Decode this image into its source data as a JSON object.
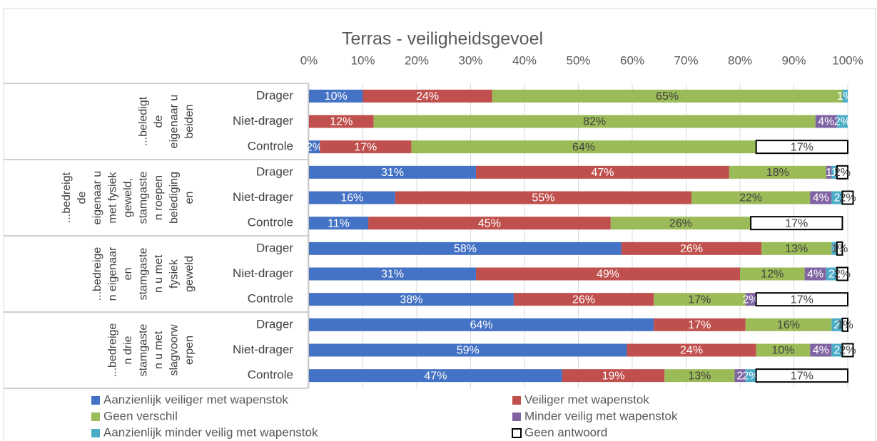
{
  "chart_data": {
    "type": "stacked_barh",
    "title": "Terras - veiligheidsgevoel",
    "categories": [
      "Drager",
      "Niet-drager",
      "Controle",
      "Drager",
      "Niet-drager",
      "Controle",
      "Drager",
      "Niet-drager",
      "Controle",
      "Drager",
      "Niet-drager",
      "Controle"
    ],
    "groups": [
      {
        "lines": [
          "...beledigt",
          "de",
          "eigenaar u",
          "beiden"
        ]
      },
      {
        "lines": [
          "...bedreigt",
          "de",
          "eigenaar u",
          "met fysiek",
          "geweld,",
          "stamgaste",
          "n roepen",
          "belediging",
          "en"
        ]
      },
      {
        "lines": [
          "...bedreige",
          "n eigenaar",
          "en",
          "stamgaste",
          "n u met",
          "fysiek",
          "geweld"
        ]
      },
      {
        "lines": [
          "...bedreige",
          "n drie",
          "stamgaste",
          "n u met",
          "slagvoorw",
          "erpen"
        ]
      }
    ],
    "xlim": [
      0,
      100
    ],
    "xticks": [
      {
        "value": 0,
        "label": "0%"
      },
      {
        "value": 10,
        "label": "10%"
      },
      {
        "value": 20,
        "label": "20%"
      },
      {
        "value": 30,
        "label": "30%"
      },
      {
        "value": 40,
        "label": "40%"
      },
      {
        "value": 50,
        "label": "50%"
      },
      {
        "value": 60,
        "label": "60%"
      },
      {
        "value": 70,
        "label": "70%"
      },
      {
        "value": 80,
        "label": "80%"
      },
      {
        "value": 90,
        "label": "90%"
      },
      {
        "value": 100,
        "label": "100%"
      }
    ],
    "grid": true,
    "legend": "bottom",
    "series": [
      {
        "name": "Aanzienlijk veiliger met wapenstok",
        "color": "#4472c4",
        "values": [
          10,
          0,
          2,
          31,
          16,
          11,
          58,
          31,
          38,
          64,
          59,
          47
        ],
        "value_labels": [
          "10%",
          null,
          "2%",
          "31%",
          "16%",
          "11%",
          "58%",
          "31%",
          "38%",
          "64%",
          "59%",
          "47%"
        ]
      },
      {
        "name": "Veiliger met wapenstok",
        "color": "#c0504d",
        "values": [
          24,
          12,
          17,
          47,
          55,
          45,
          26,
          49,
          26,
          17,
          24,
          19
        ],
        "value_labels": [
          "24%",
          "12%",
          "17%",
          "47%",
          "55%",
          "45%",
          "26%",
          "49%",
          "26%",
          "17%",
          "24%",
          "19%"
        ]
      },
      {
        "name": "Geen verschil",
        "color": "#9bbb59",
        "values": [
          65,
          82,
          64,
          18,
          22,
          26,
          13,
          12,
          17,
          16,
          10,
          13
        ],
        "value_labels": [
          "65%",
          "82%",
          "64%",
          "18%",
          "22%",
          "26%",
          "13%",
          "12%",
          "17%",
          "16%",
          "10%",
          "13%"
        ]
      },
      {
        "name": "Minder veilig met wapenstok",
        "color": "#8064a2",
        "values": [
          0,
          4,
          0,
          1,
          4,
          0,
          0,
          4,
          2,
          0,
          4,
          2
        ],
        "value_labels": [
          null,
          "4%",
          null,
          "1",
          "4%",
          null,
          null,
          "4%",
          "2%",
          null,
          "4%",
          "2"
        ]
      },
      {
        "name": "Aanzienlijk minder veilig met wapenstok",
        "color": "#4bacc6",
        "values": [
          1,
          2,
          0,
          1,
          2,
          0,
          1,
          2,
          0,
          2,
          2,
          2
        ],
        "value_labels": [
          "1%",
          "2%",
          null,
          "1",
          "2",
          null,
          "1",
          "2",
          null,
          "2",
          "2",
          "2%"
        ]
      },
      {
        "name": "Geen antwoord",
        "color": "#ffffff",
        "edgecolor": "#000000",
        "values": [
          0,
          0,
          17,
          2,
          2,
          17,
          1,
          2,
          17,
          1,
          2,
          17
        ],
        "value_labels": [
          null,
          null,
          "17%",
          "2%",
          "2%",
          "17%",
          "1%",
          "2%",
          "17%",
          "1%",
          "2%",
          "17%"
        ]
      }
    ]
  }
}
